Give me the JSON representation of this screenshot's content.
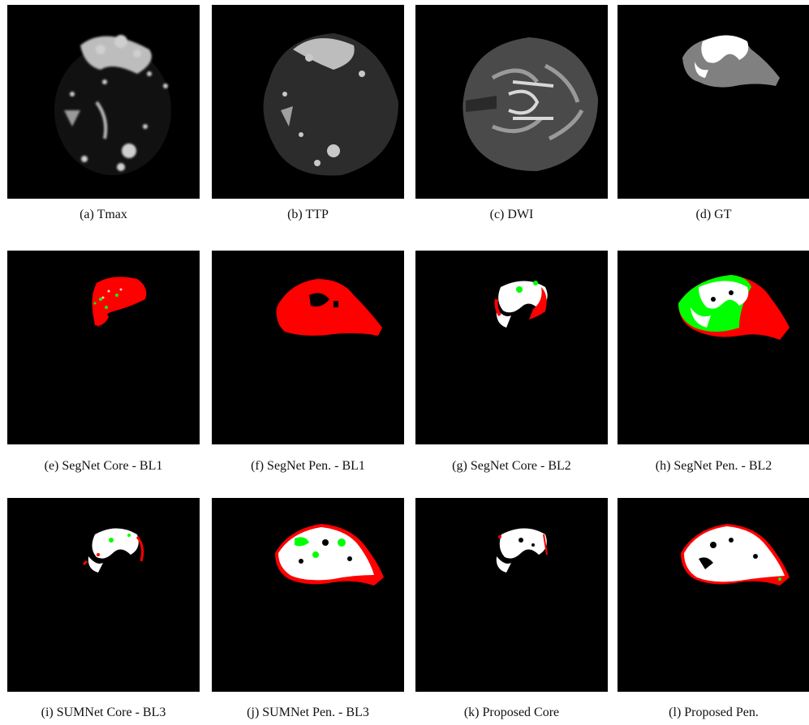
{
  "colors": {
    "background": "#000000",
    "core": "#ffffff",
    "penumbra": "#808080",
    "false_positive": "#ff0000",
    "false_negative": "#00ff00",
    "caption_text": "#111111"
  },
  "figure": {
    "panels": [
      {
        "caption": "(a) Tmax",
        "content": "perfusion map (Tmax)",
        "icon": "brain-slice-image"
      },
      {
        "caption": "(b) TTP",
        "content": "perfusion map (TTP)",
        "icon": "brain-slice-image"
      },
      {
        "caption": "(c) DWI",
        "content": "diffusion weighted image",
        "icon": "brain-slice-image"
      },
      {
        "caption": "(d) GT",
        "content": "ground truth mask",
        "icon": "segmentation-mask"
      },
      {
        "caption": "(e) SegNet Core - BL1",
        "content": "prediction overlay",
        "icon": "segmentation-mask"
      },
      {
        "caption": "(f) SegNet Pen. - BL1",
        "content": "prediction overlay",
        "icon": "segmentation-mask"
      },
      {
        "caption": "(g) SegNet Core - BL2",
        "content": "prediction overlay",
        "icon": "segmentation-mask"
      },
      {
        "caption": "(h) SegNet Pen. - BL2",
        "content": "prediction overlay",
        "icon": "segmentation-mask"
      },
      {
        "caption": "(i) SUMNet Core - BL3",
        "content": "prediction overlay",
        "icon": "segmentation-mask"
      },
      {
        "caption": "(j) SUMNet Pen. - BL3",
        "content": "prediction overlay",
        "icon": "segmentation-mask"
      },
      {
        "caption": "(k) Proposed Core",
        "content": "prediction overlay",
        "icon": "segmentation-mask"
      },
      {
        "caption": "(l) Proposed Pen.",
        "content": "prediction overlay",
        "icon": "segmentation-mask"
      }
    ]
  }
}
